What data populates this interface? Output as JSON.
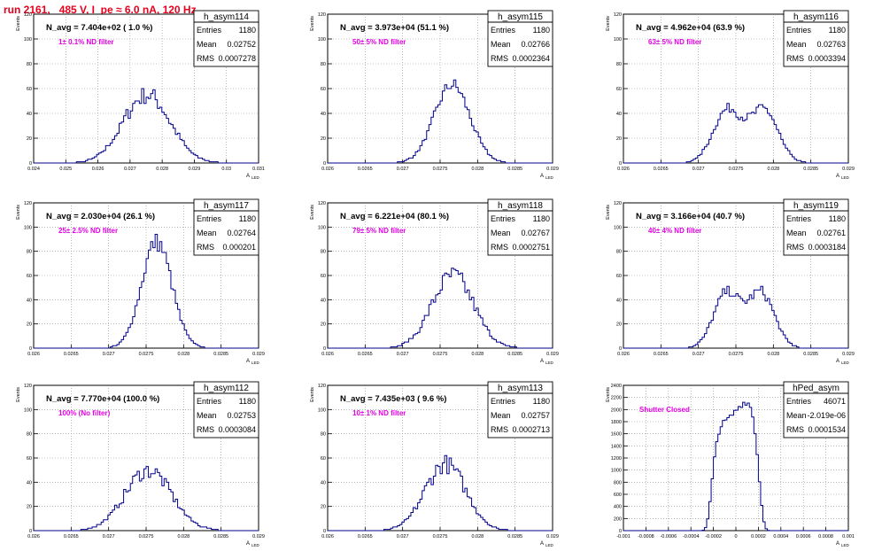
{
  "run_title": "run 2161,   485 V, I_pe ≈ 6.0 nA, 120 Hz",
  "axis_labels": {
    "y": "Events",
    "x": "A",
    "x_sub": "LED"
  },
  "colors": {
    "histogram": "#00008b",
    "annotation": "#e400e4",
    "title": "#e8001c",
    "grid": "#8a8a8a"
  },
  "stats_headers": [
    "Entries",
    "Mean",
    "RMS"
  ],
  "chart_data": [
    {
      "type": "bar",
      "name": "h_asym114",
      "title": "N_avg = 7.404e+02 ( 1.0 %)",
      "annotation": "1± 0.1% ND filter",
      "entries": "1180",
      "mean": "0.02752",
      "rms": "0.0007278",
      "xlim": [
        0.024,
        0.031
      ],
      "ylim": [
        0,
        120
      ],
      "xticks": [
        0.024,
        0.025,
        0.026,
        0.027,
        0.028,
        0.029,
        0.03,
        0.031
      ],
      "xtick_labels": [
        "0.024",
        "0.025",
        "0.026",
        "0.027",
        "0.028",
        "0.029",
        "0.03",
        "0.031"
      ],
      "yticks": [
        0,
        20,
        40,
        60,
        80,
        100,
        120
      ],
      "mu": 0.02752,
      "sigma": 0.0007278,
      "peak": 55,
      "shape": "noisy"
    },
    {
      "type": "bar",
      "name": "h_asym115",
      "title": "N_avg = 3.973e+04 (51.1 %)",
      "annotation": "50± 5% ND filter",
      "entries": "1180",
      "mean": "0.02766",
      "rms": "0.0002364",
      "xlim": [
        0.026,
        0.029
      ],
      "ylim": [
        0,
        120
      ],
      "xticks": [
        0.026,
        0.0265,
        0.027,
        0.0275,
        0.028,
        0.0285,
        0.029
      ],
      "xtick_labels": [
        "0.026",
        "0.0265",
        "0.027",
        "0.0275",
        "0.028",
        "0.0285",
        "0.029"
      ],
      "yticks": [
        0,
        20,
        40,
        60,
        80,
        100,
        120
      ],
      "mu": 0.02766,
      "sigma": 0.0002364,
      "peak": 63,
      "shape": "single"
    },
    {
      "type": "bar",
      "name": "h_asym116",
      "title": "N_avg = 4.962e+04 (63.9 %)",
      "annotation": "63± 5% ND filter",
      "entries": "1180",
      "mean": "0.02763",
      "rms": "0.0003394",
      "xlim": [
        0.026,
        0.029
      ],
      "ylim": [
        0,
        120
      ],
      "xticks": [
        0.026,
        0.0265,
        0.027,
        0.0275,
        0.028,
        0.0285,
        0.029
      ],
      "xtick_labels": [
        "0.026",
        "0.0265",
        "0.027",
        "0.0275",
        "0.028",
        "0.0285",
        "0.029"
      ],
      "yticks": [
        0,
        20,
        40,
        60,
        80,
        100,
        120
      ],
      "mu": 0.02763,
      "sigma": 0.0003394,
      "peak": 45,
      "shape": "double"
    },
    {
      "type": "bar",
      "name": "h_asym117",
      "title": "N_avg = 2.030e+04 (26.1 %)",
      "annotation": "25± 2.5% ND filter",
      "entries": "1180",
      "mean": "0.02764",
      "rms": "0.000201",
      "xlim": [
        0.026,
        0.029
      ],
      "ylim": [
        0,
        120
      ],
      "xticks": [
        0.026,
        0.0265,
        0.027,
        0.0275,
        0.028,
        0.0285,
        0.029
      ],
      "xtick_labels": [
        "0.026",
        "0.0265",
        "0.027",
        "0.0275",
        "0.028",
        "0.0285",
        "0.029"
      ],
      "yticks": [
        0,
        20,
        40,
        60,
        80,
        100,
        120
      ],
      "mu": 0.02764,
      "sigma": 0.000201,
      "peak": 88,
      "shape": "single"
    },
    {
      "type": "bar",
      "name": "h_asym118",
      "title": "N_avg = 6.221e+04 (80.1 %)",
      "annotation": "79± 5% ND filter",
      "entries": "1180",
      "mean": "0.02767",
      "rms": "0.0002751",
      "xlim": [
        0.026,
        0.029
      ],
      "ylim": [
        0,
        120
      ],
      "xticks": [
        0.026,
        0.0265,
        0.027,
        0.0275,
        0.028,
        0.0285,
        0.029
      ],
      "xtick_labels": [
        "0.026",
        "0.0265",
        "0.027",
        "0.0275",
        "0.028",
        "0.0285",
        "0.029"
      ],
      "yticks": [
        0,
        20,
        40,
        60,
        80,
        100,
        120
      ],
      "mu": 0.02767,
      "sigma": 0.0002751,
      "peak": 60,
      "shape": "noisy"
    },
    {
      "type": "bar",
      "name": "h_asym119",
      "title": "N_avg = 3.166e+04 (40.7 %)",
      "annotation": "40± 4% ND filter",
      "entries": "1180",
      "mean": "0.02761",
      "rms": "0.0003184",
      "xlim": [
        0.026,
        0.029
      ],
      "ylim": [
        0,
        120
      ],
      "xticks": [
        0.026,
        0.0265,
        0.027,
        0.0275,
        0.028,
        0.0285,
        0.029
      ],
      "xtick_labels": [
        "0.026",
        "0.0265",
        "0.027",
        "0.0275",
        "0.028",
        "0.0285",
        "0.029"
      ],
      "yticks": [
        0,
        20,
        40,
        60,
        80,
        100,
        120
      ],
      "mu": 0.02761,
      "sigma": 0.0003184,
      "peak": 48,
      "shape": "double"
    },
    {
      "type": "bar",
      "name": "h_asym112",
      "title": "N_avg = 7.770e+04 (100.0 %)",
      "annotation": "100% (No filter)",
      "entries": "1180",
      "mean": "0.02753",
      "rms": "0.0003084",
      "xlim": [
        0.026,
        0.029
      ],
      "ylim": [
        0,
        120
      ],
      "xticks": [
        0.026,
        0.0265,
        0.027,
        0.0275,
        0.028,
        0.0285,
        0.029
      ],
      "xtick_labels": [
        "0.026",
        "0.0265",
        "0.027",
        "0.0275",
        "0.028",
        "0.0285",
        "0.029"
      ],
      "yticks": [
        0,
        20,
        40,
        60,
        80,
        100,
        120
      ],
      "mu": 0.02753,
      "sigma": 0.0003084,
      "peak": 50,
      "shape": "noisy"
    },
    {
      "type": "bar",
      "name": "h_asym113",
      "title": "N_avg = 7.435e+03 ( 9.6 %)",
      "annotation": "10± 1% ND filter",
      "entries": "1180",
      "mean": "0.02757",
      "rms": "0.0002713",
      "xlim": [
        0.026,
        0.029
      ],
      "ylim": [
        0,
        120
      ],
      "xticks": [
        0.026,
        0.0265,
        0.027,
        0.0275,
        0.028,
        0.0285,
        0.029
      ],
      "xtick_labels": [
        "0.026",
        "0.0265",
        "0.027",
        "0.0275",
        "0.028",
        "0.0285",
        "0.029"
      ],
      "yticks": [
        0,
        20,
        40,
        60,
        80,
        100,
        120
      ],
      "mu": 0.02757,
      "sigma": 0.0002713,
      "peak": 55,
      "shape": "noisy"
    },
    {
      "type": "bar",
      "name": "hPed_asym",
      "title": "",
      "annotation": "Shutter Closed",
      "entries": "46071",
      "mean": "-2.019e-06",
      "rms": "0.0001534",
      "xlim": [
        -0.001,
        0.001
      ],
      "ylim": [
        0,
        2400
      ],
      "xticks": [
        -0.001,
        -0.0008,
        -0.0006,
        -0.0004,
        -0.0002,
        0,
        0.0002,
        0.0004,
        0.0006,
        0.0008,
        0.001
      ],
      "xtick_labels": [
        "-0.001",
        "-0.0008",
        "-0.0006",
        "-0.0004",
        "-0.0002",
        "0",
        "0.0002",
        "0.0004",
        "0.0006",
        "0.0008",
        "0.001"
      ],
      "yticks": [
        0,
        200,
        400,
        600,
        800,
        1000,
        1200,
        1400,
        1600,
        1800,
        2000,
        2200,
        2400
      ],
      "mu": -2e-06,
      "sigma": 0.0001534,
      "peak": 2150,
      "shape": "ped"
    }
  ]
}
